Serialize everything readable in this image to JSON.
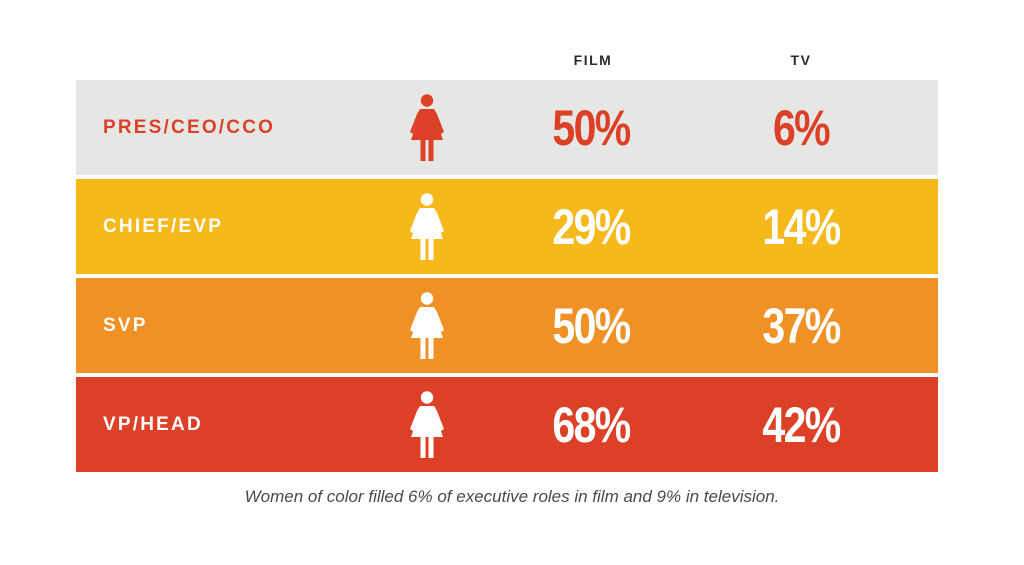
{
  "chart_data": {
    "type": "table",
    "columns": [
      "FILM",
      "TV"
    ],
    "rows": [
      {
        "label": "PRES/CEO/CCO",
        "film": "50%",
        "tv": "6%",
        "bg": "#e6e6e5",
        "fg": "#dc4127",
        "icon": "woman-icon"
      },
      {
        "label": "CHIEF/EVP",
        "film": "29%",
        "tv": "14%",
        "bg": "#f6b91c",
        "fg": "#ffffff",
        "icon": "woman-icon"
      },
      {
        "label": "SVP",
        "film": "50%",
        "tv": "37%",
        "bg": "#f09125",
        "fg": "#ffffff",
        "icon": "woman-icon"
      },
      {
        "label": "VP/HEAD",
        "film": "68%",
        "tv": "42%",
        "bg": "#dc4127",
        "fg": "#ffffff",
        "icon": "woman-icon"
      }
    ],
    "film_values_percent": [
      50,
      29,
      50,
      68
    ],
    "tv_values_percent": [
      6,
      14,
      37,
      42
    ]
  },
  "caption": "Women of color filled 6% of executive roles in film and 9% in television."
}
